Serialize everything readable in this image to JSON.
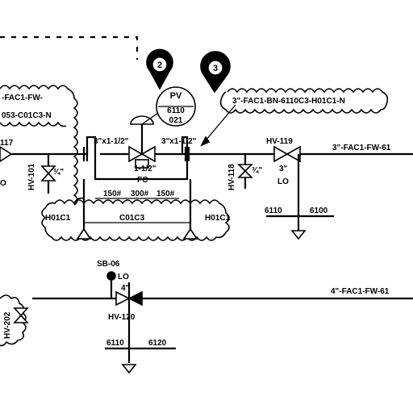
{
  "labels": {
    "line_top_left": "-FAC1-FW-",
    "line_top_left_b": "053-C01C3-N",
    "line_top_right": "3\"-FAC1-BN-6110C3-H01C1-N",
    "line_main_right": "3\"-FAC1-FW-61",
    "line_lower_right": "4\"-FAC1-FW-61",
    "pv_tag": "PV",
    "pv_num": "6110",
    "pv_sub": "021",
    "callout_1": "2",
    "callout_2": "3",
    "reducer_left": "3\"x1-1/2\"",
    "reducer_right": "3\"x1-1/2\"",
    "valve_size": "1-1/2\"",
    "fc": "FC",
    "dim_a": "150#",
    "dim_b": "300#",
    "dim_c": "150#",
    "spec_left": "H01C1",
    "spec_mid": "C01C3",
    "spec_right": "H01C1",
    "tag_117": "117",
    "tag_101": "HV-101",
    "tag_118": "HV-118",
    "tag_119": "HV-119",
    "tag_120": "HV-120",
    "tag_202": "HV-202",
    "size_3": "3\"",
    "size_4": "4\"",
    "size_half": "¾\"",
    "lo": "LO",
    "lo_2": "LO",
    "sb": "SB-06",
    "n6110a": "6110",
    "n6100": "6100",
    "n6110b": "6110",
    "n6120": "6120",
    "edge_o": "O"
  }
}
